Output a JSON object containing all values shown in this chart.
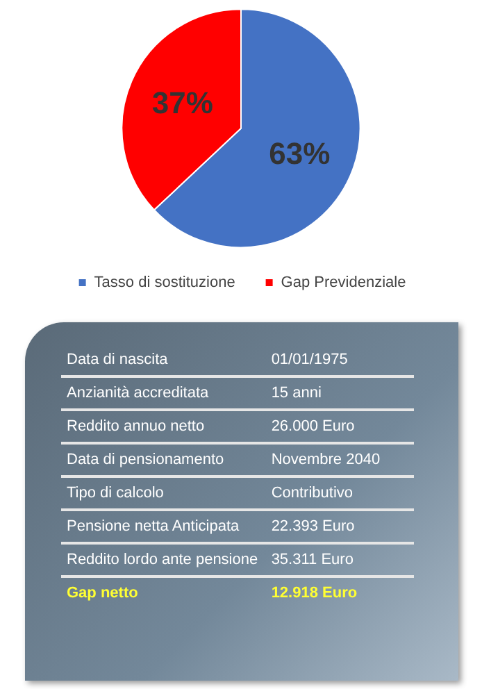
{
  "chart_data": [
    {
      "type": "pie",
      "categories": [
        "Tasso di sostituzione",
        "Gap Previdenziale"
      ],
      "values": [
        63,
        37
      ],
      "colors": [
        "#4472c4",
        "#ff0000"
      ],
      "value_labels": [
        "63%",
        "37%"
      ],
      "legend": "bottom"
    },
    {
      "type": "other",
      "annotations": [
        "Data di nascita",
        "01/01/1975",
        "Anzianità accreditata",
        "15 anni",
        "Reddito annuo netto",
        "26.000 Euro",
        "Data di pensionamento",
        "Novembre 2040",
        "Tipo di calcolo",
        "Contributivo",
        "Pensione netta Anticipata",
        "22.393 Euro",
        "Reddito lordo ante pensione",
        "35.311 Euro",
        "Gap netto",
        "12.918 Euro"
      ]
    }
  ]
}
